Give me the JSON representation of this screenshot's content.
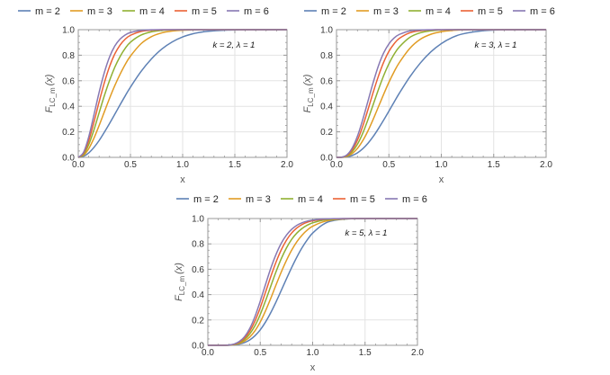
{
  "chart_data": [
    {
      "type": "line",
      "title": "",
      "annotation": "k = 2, λ = 1",
      "xlabel": "x",
      "ylabel_main": "F",
      "ylabel_sub": "LC_m",
      "ylabel_arg": "(x)",
      "xlim": [
        0,
        2
      ],
      "ylim": [
        0,
        1
      ],
      "x_ticks": [
        "0.0",
        "0.5",
        "1.0",
        "1.5",
        "2.0"
      ],
      "y_ticks": [
        "0.0",
        "0.2",
        "0.4",
        "0.6",
        "0.8",
        "1.0"
      ],
      "grid": true,
      "legend_position": "top",
      "x": [
        0,
        0.05,
        0.1,
        0.15,
        0.2,
        0.25,
        0.3,
        0.35,
        0.4,
        0.45,
        0.5,
        0.6,
        0.7,
        0.8,
        0.9,
        1.0,
        1.1,
        1.2,
        1.3,
        1.4,
        1.6,
        1.8,
        2.0
      ],
      "series": [
        {
          "name": "m = 2",
          "values": [
            0,
            0.008,
            0.035,
            0.078,
            0.132,
            0.197,
            0.266,
            0.338,
            0.411,
            0.482,
            0.55,
            0.671,
            0.77,
            0.848,
            0.904,
            0.943,
            0.968,
            0.983,
            0.991,
            0.996,
            0.999,
            1.0,
            1.0
          ]
        },
        {
          "name": "m = 3",
          "values": [
            0,
            0.016,
            0.068,
            0.15,
            0.25,
            0.357,
            0.463,
            0.562,
            0.65,
            0.728,
            0.793,
            0.889,
            0.945,
            0.975,
            0.989,
            0.996,
            0.998,
            0.999,
            1.0,
            1.0,
            1.0,
            1.0,
            1.0
          ]
        },
        {
          "name": "m = 4",
          "values": [
            0,
            0.024,
            0.1,
            0.215,
            0.35,
            0.483,
            0.603,
            0.706,
            0.789,
            0.854,
            0.902,
            0.957,
            0.983,
            0.994,
            0.998,
            0.999,
            1.0,
            1.0,
            1.0,
            1.0,
            1.0,
            1.0,
            1.0
          ]
        },
        {
          "name": "m = 5",
          "values": [
            0,
            0.032,
            0.13,
            0.276,
            0.435,
            0.585,
            0.712,
            0.81,
            0.879,
            0.926,
            0.956,
            0.986,
            0.996,
            0.999,
            1.0,
            1.0,
            1.0,
            1.0,
            1.0,
            1.0,
            1.0,
            1.0,
            1.0
          ]
        },
        {
          "name": "m = 6",
          "values": [
            0,
            0.039,
            0.16,
            0.332,
            0.51,
            0.665,
            0.787,
            0.872,
            0.926,
            0.959,
            0.978,
            0.995,
            0.999,
            1.0,
            1.0,
            1.0,
            1.0,
            1.0,
            1.0,
            1.0,
            1.0,
            1.0,
            1.0
          ]
        }
      ]
    },
    {
      "type": "line",
      "title": "",
      "annotation": "k = 3, λ = 1",
      "xlabel": "x",
      "ylabel_main": "F",
      "ylabel_sub": "LC_m",
      "ylabel_arg": "(x)",
      "xlim": [
        0,
        2
      ],
      "ylim": [
        0,
        1
      ],
      "x_ticks": [
        "0.0",
        "0.5",
        "1.0",
        "1.5",
        "2.0"
      ],
      "y_ticks": [
        "0.0",
        "0.2",
        "0.4",
        "0.6",
        "0.8",
        "1.0"
      ],
      "grid": true,
      "legend_position": "top",
      "x": [
        0,
        0.05,
        0.1,
        0.15,
        0.2,
        0.25,
        0.3,
        0.35,
        0.4,
        0.45,
        0.5,
        0.55,
        0.6,
        0.7,
        0.8,
        0.9,
        1.0,
        1.1,
        1.2,
        1.4,
        1.6,
        1.8,
        2.0
      ],
      "series": [
        {
          "name": "m = 2",
          "values": [
            0,
            0.0,
            0.004,
            0.015,
            0.035,
            0.067,
            0.11,
            0.163,
            0.225,
            0.292,
            0.362,
            0.433,
            0.503,
            0.631,
            0.739,
            0.826,
            0.891,
            0.937,
            0.966,
            0.992,
            0.999,
            1.0,
            1.0
          ]
        },
        {
          "name": "m = 3",
          "values": [
            0,
            0.001,
            0.008,
            0.03,
            0.07,
            0.13,
            0.207,
            0.298,
            0.396,
            0.494,
            0.588,
            0.671,
            0.743,
            0.854,
            0.925,
            0.964,
            0.984,
            0.994,
            0.998,
            1.0,
            1.0,
            1.0,
            1.0
          ]
        },
        {
          "name": "m = 4",
          "values": [
            0,
            0.001,
            0.012,
            0.045,
            0.103,
            0.188,
            0.295,
            0.413,
            0.531,
            0.64,
            0.733,
            0.808,
            0.865,
            0.94,
            0.976,
            0.991,
            0.997,
            0.999,
            1.0,
            1.0,
            1.0,
            1.0,
            1.0
          ]
        },
        {
          "name": "m = 5",
          "values": [
            0,
            0.001,
            0.016,
            0.059,
            0.135,
            0.243,
            0.373,
            0.509,
            0.636,
            0.745,
            0.83,
            0.89,
            0.932,
            0.976,
            0.992,
            0.998,
            0.999,
            1.0,
            1.0,
            1.0,
            1.0,
            1.0,
            1.0
          ]
        },
        {
          "name": "m = 6",
          "values": [
            0,
            0.002,
            0.02,
            0.073,
            0.166,
            0.294,
            0.44,
            0.586,
            0.717,
            0.818,
            0.889,
            0.935,
            0.963,
            0.99,
            0.997,
            0.999,
            1.0,
            1.0,
            1.0,
            1.0,
            1.0,
            1.0,
            1.0
          ]
        }
      ]
    },
    {
      "type": "line",
      "title": "",
      "annotation": "k = 5, λ = 1",
      "xlabel": "x",
      "ylabel_main": "F",
      "ylabel_sub": "LC_m",
      "ylabel_arg": "(x)",
      "xlim": [
        0,
        2
      ],
      "ylim": [
        0,
        1
      ],
      "x_ticks": [
        "0.0",
        "0.5",
        "1.0",
        "1.5",
        "2.0"
      ],
      "y_ticks": [
        "0.0",
        "0.2",
        "0.4",
        "0.6",
        "0.8",
        "1.0"
      ],
      "grid": true,
      "legend_position": "top",
      "x": [
        0,
        0.1,
        0.2,
        0.25,
        0.3,
        0.35,
        0.4,
        0.45,
        0.5,
        0.55,
        0.6,
        0.65,
        0.7,
        0.75,
        0.8,
        0.85,
        0.9,
        0.95,
        1.0,
        1.1,
        1.2,
        1.4,
        2.0
      ],
      "series": [
        {
          "name": "m = 2",
          "values": [
            0,
            0.0,
            0.001,
            0.003,
            0.01,
            0.022,
            0.043,
            0.076,
            0.122,
            0.183,
            0.257,
            0.341,
            0.432,
            0.524,
            0.614,
            0.697,
            0.771,
            0.834,
            0.885,
            0.953,
            0.984,
            0.999,
            1.0
          ]
        },
        {
          "name": "m = 3",
          "values": [
            0,
            0.0,
            0.001,
            0.005,
            0.015,
            0.034,
            0.066,
            0.115,
            0.184,
            0.271,
            0.37,
            0.475,
            0.577,
            0.67,
            0.751,
            0.818,
            0.87,
            0.91,
            0.939,
            0.974,
            0.99,
            0.999,
            1.0
          ]
        },
        {
          "name": "m = 4",
          "values": [
            0,
            0.0,
            0.001,
            0.006,
            0.02,
            0.046,
            0.09,
            0.155,
            0.243,
            0.35,
            0.465,
            0.579,
            0.682,
            0.768,
            0.836,
            0.886,
            0.922,
            0.948,
            0.966,
            0.987,
            0.995,
            0.999,
            1.0
          ]
        },
        {
          "name": "m = 5",
          "values": [
            0,
            0.0,
            0.002,
            0.008,
            0.025,
            0.057,
            0.112,
            0.192,
            0.297,
            0.418,
            0.541,
            0.655,
            0.752,
            0.829,
            0.886,
            0.926,
            0.953,
            0.971,
            0.982,
            0.994,
            0.998,
            1.0,
            1.0
          ]
        },
        {
          "name": "m = 6",
          "values": [
            0,
            0.0,
            0.002,
            0.01,
            0.03,
            0.068,
            0.133,
            0.228,
            0.348,
            0.479,
            0.606,
            0.716,
            0.804,
            0.869,
            0.915,
            0.947,
            0.967,
            0.98,
            0.988,
            0.996,
            0.999,
            1.0,
            1.0
          ]
        }
      ]
    }
  ],
  "colors": {
    "series": [
      "#5E81B5",
      "#E19C24",
      "#8FB032",
      "#EB6235",
      "#8778B3"
    ],
    "grid": "#e3e3e3",
    "frame": "#999999",
    "tick_text": "#333333",
    "axis_label": "#555555"
  }
}
